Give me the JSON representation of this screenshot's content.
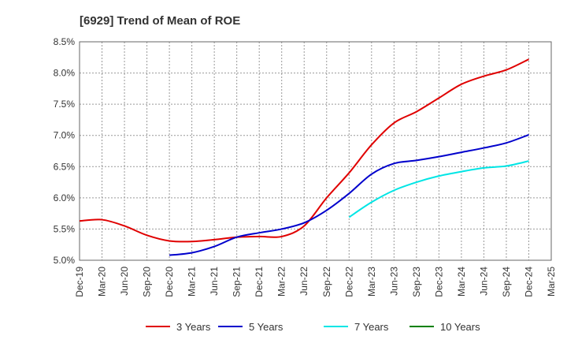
{
  "chart_data": {
    "type": "line",
    "title": "[6929]  Trend of Mean of ROE",
    "xlabel": "",
    "ylabel": "",
    "x_ticks": [
      "Dec-19",
      "Mar-20",
      "Jun-20",
      "Sep-20",
      "Dec-20",
      "Mar-21",
      "Jun-21",
      "Sep-21",
      "Dec-21",
      "Mar-22",
      "Jun-22",
      "Sep-22",
      "Dec-22",
      "Mar-23",
      "Jun-23",
      "Sep-23",
      "Dec-23",
      "Mar-24",
      "Jun-24",
      "Sep-24",
      "Dec-24",
      "Mar-25"
    ],
    "y_ticks": [
      "5.0%",
      "5.5%",
      "6.0%",
      "6.5%",
      "7.0%",
      "7.5%",
      "8.0%",
      "8.5%"
    ],
    "ylim": [
      5.0,
      8.5
    ],
    "y_unit": "%",
    "grid": true,
    "legend_position": "bottom",
    "series": [
      {
        "name": "3 Years",
        "color": "#e00000",
        "x": [
          "Dec-19",
          "Mar-20",
          "Jun-20",
          "Sep-20",
          "Dec-20",
          "Mar-21",
          "Jun-21",
          "Sep-21",
          "Dec-21",
          "Mar-22",
          "Jun-22",
          "Sep-22",
          "Dec-22",
          "Mar-23",
          "Jun-23",
          "Sep-23",
          "Dec-23",
          "Mar-24",
          "Jun-24",
          "Sep-24",
          "Dec-24"
        ],
        "values": [
          5.63,
          5.65,
          5.55,
          5.4,
          5.31,
          5.3,
          5.33,
          5.37,
          5.38,
          5.38,
          5.55,
          6.0,
          6.4,
          6.85,
          7.2,
          7.38,
          7.6,
          7.82,
          7.95,
          8.05,
          8.22
        ]
      },
      {
        "name": "5 Years",
        "color": "#0000cc",
        "x": [
          "Dec-20",
          "Mar-21",
          "Jun-21",
          "Sep-21",
          "Dec-21",
          "Mar-22",
          "Jun-22",
          "Sep-22",
          "Dec-22",
          "Mar-23",
          "Jun-23",
          "Sep-23",
          "Dec-23",
          "Mar-24",
          "Jun-24",
          "Sep-24",
          "Dec-24"
        ],
        "values": [
          5.08,
          5.12,
          5.22,
          5.37,
          5.44,
          5.5,
          5.6,
          5.8,
          6.07,
          6.38,
          6.55,
          6.6,
          6.66,
          6.73,
          6.8,
          6.88,
          7.01
        ]
      },
      {
        "name": "7 Years",
        "color": "#00e5e5",
        "x": [
          "Dec-22",
          "Mar-23",
          "Jun-23",
          "Sep-23",
          "Dec-23",
          "Mar-24",
          "Jun-24",
          "Sep-24",
          "Dec-24"
        ],
        "values": [
          5.69,
          5.93,
          6.12,
          6.25,
          6.35,
          6.42,
          6.48,
          6.51,
          6.59
        ]
      },
      {
        "name": "10 Years",
        "color": "#008000",
        "x": [],
        "values": []
      }
    ]
  }
}
